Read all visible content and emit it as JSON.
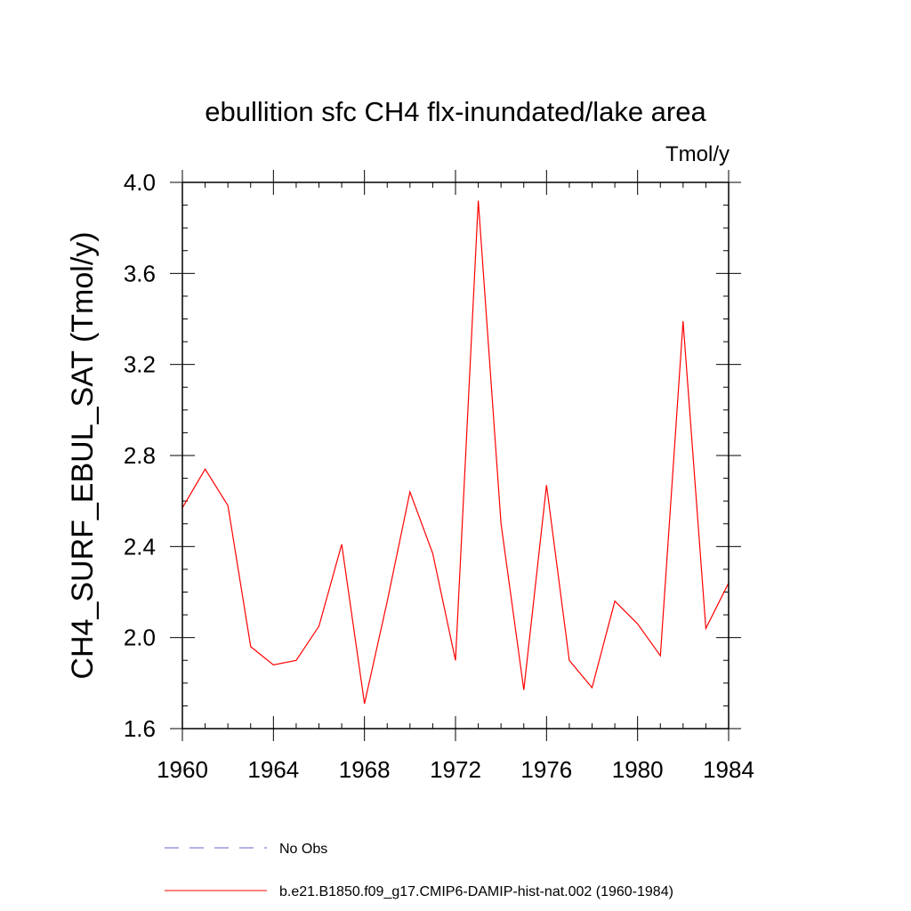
{
  "chart_data": {
    "type": "line",
    "title": "ebullition sfc CH4 flx-inundated/lake area",
    "units": "Tmol/y",
    "xlabel": "",
    "ylabel": "CH4_SURF_EBUL_SAT  (Tmol/y)",
    "xlim": [
      1960,
      1984
    ],
    "ylim": [
      1.6,
      4.0
    ],
    "x_ticks": [
      "1960",
      "1964",
      "1968",
      "1972",
      "1976",
      "1980",
      "1984"
    ],
    "y_ticks": [
      "1.6",
      "2.0",
      "2.4",
      "2.8",
      "3.2",
      "3.6",
      "4.0"
    ],
    "grid": false,
    "legend_position": "bottom",
    "series": [
      {
        "name": "b.e21.B1850.f09_g17.CMIP6-DAMIP-hist-nat.002 (1960-1984)",
        "color": "#ff0000",
        "style": "solid",
        "x": [
          1960,
          1961,
          1962,
          1963,
          1964,
          1965,
          1966,
          1967,
          1968,
          1969,
          1970,
          1971,
          1972,
          1973,
          1974,
          1975,
          1976,
          1977,
          1978,
          1979,
          1980,
          1981,
          1982,
          1983,
          1984
        ],
        "values": [
          2.57,
          2.74,
          2.58,
          1.96,
          1.88,
          1.9,
          2.05,
          2.41,
          1.71,
          2.16,
          2.64,
          2.37,
          1.9,
          3.92,
          2.5,
          1.77,
          2.67,
          1.9,
          1.78,
          2.16,
          2.06,
          1.92,
          3.39,
          2.04,
          2.24
        ]
      }
    ],
    "legend": [
      {
        "label": "No Obs",
        "color": "#6666cc",
        "style": "dashed"
      },
      {
        "label": "b.e21.B1850.f09_g17.CMIP6-DAMIP-hist-nat.002 (1960-1984)",
        "color": "#ff0000",
        "style": "solid"
      }
    ]
  }
}
